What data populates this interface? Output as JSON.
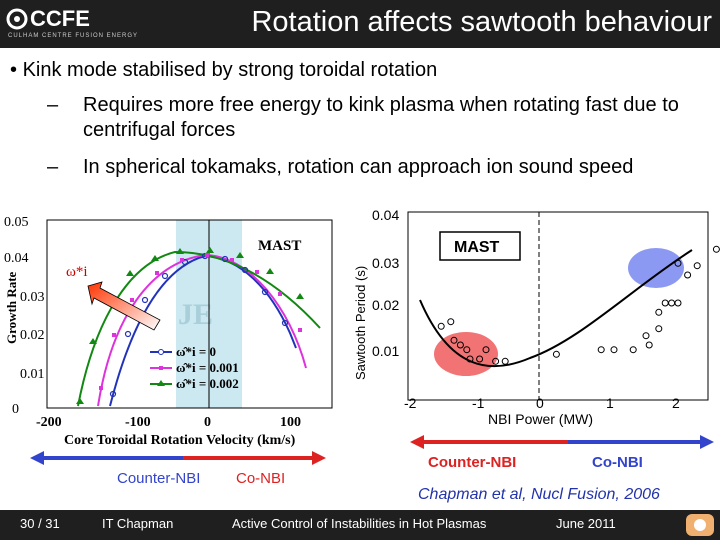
{
  "header": {
    "logo_text": "CCFE",
    "logo_subtext": "CULHAM CENTRE FUSION ENERGY",
    "title": "Rotation affects sawtooth behaviour"
  },
  "bullets": {
    "b1": "Kink mode stabilised by strong toroidal rotation",
    "b2": "Requires more free energy to kink plasma when rotating fast due to centrifugal forces",
    "b3": "In spherical tokamaks, rotation can approach ion sound speed",
    "bullet_char": "•",
    "dash_char": "–"
  },
  "left_plot": {
    "mast_label": "MAST",
    "omega_label": "ω*i",
    "je_label": "JE",
    "ylabel": "Growth Rate",
    "xlabel": "Core Toroidal Rotation Velocity (km/s)",
    "yticks": [
      "0.05",
      "0.04",
      "0.03",
      "0.02",
      "0.01",
      "0"
    ],
    "xticks": [
      "-200",
      "-100",
      "0",
      "100"
    ],
    "legend": [
      "ω̂*i = 0",
      "ω̂*i = 0.001",
      "ω̂*i = 0.002"
    ],
    "colors": {
      "blue": "#2233bb",
      "magenta": "#dd33dd",
      "green": "#118811"
    },
    "counter_label": "Counter-NBI",
    "co_label": "Co-NBI"
  },
  "chart_data": {
    "type": "scatter",
    "title": "",
    "xlabel": "NBI Power (MW)",
    "ylabel": "Sawtooth Period (s)",
    "xlim": [
      -2,
      2.4
    ],
    "ylim": [
      0.0,
      0.04
    ],
    "xticks": [
      "-2",
      "-1",
      "0",
      "1",
      "2"
    ],
    "yticks": [
      "0.04",
      "0.03",
      "0.02",
      "0.01"
    ],
    "annotation": "MAST",
    "points": [
      [
        -1.7,
        0.0155
      ],
      [
        -1.55,
        0.0165
      ],
      [
        -1.5,
        0.0125
      ],
      [
        -1.4,
        0.0115
      ],
      [
        -1.3,
        0.0105
      ],
      [
        -1.25,
        0.0085
      ],
      [
        -1.1,
        0.0085
      ],
      [
        -0.85,
        0.008
      ],
      [
        -0.7,
        0.008
      ],
      [
        -1.0,
        0.0105
      ],
      [
        0.1,
        0.0095
      ],
      [
        0.8,
        0.0105
      ],
      [
        1.0,
        0.0105
      ],
      [
        1.3,
        0.0105
      ],
      [
        1.55,
        0.0115
      ],
      [
        1.5,
        0.0135
      ],
      [
        1.7,
        0.0185
      ],
      [
        1.8,
        0.0205
      ],
      [
        1.9,
        0.0205
      ],
      [
        2.0,
        0.0205
      ],
      [
        1.7,
        0.015
      ],
      [
        2.15,
        0.0265
      ],
      [
        2.3,
        0.0285
      ],
      [
        2.0,
        0.029
      ],
      [
        2.6,
        0.032
      ]
    ],
    "counter_label": "Counter-NBI",
    "co_label": "Co-NBI",
    "citation": "Chapman et al, Nucl Fusion, 2006"
  },
  "footer": {
    "page": "30 / 31",
    "author": "IT Chapman",
    "talk": "Active Control of Instabilities in Hot Plasmas",
    "date": "June 2011"
  }
}
